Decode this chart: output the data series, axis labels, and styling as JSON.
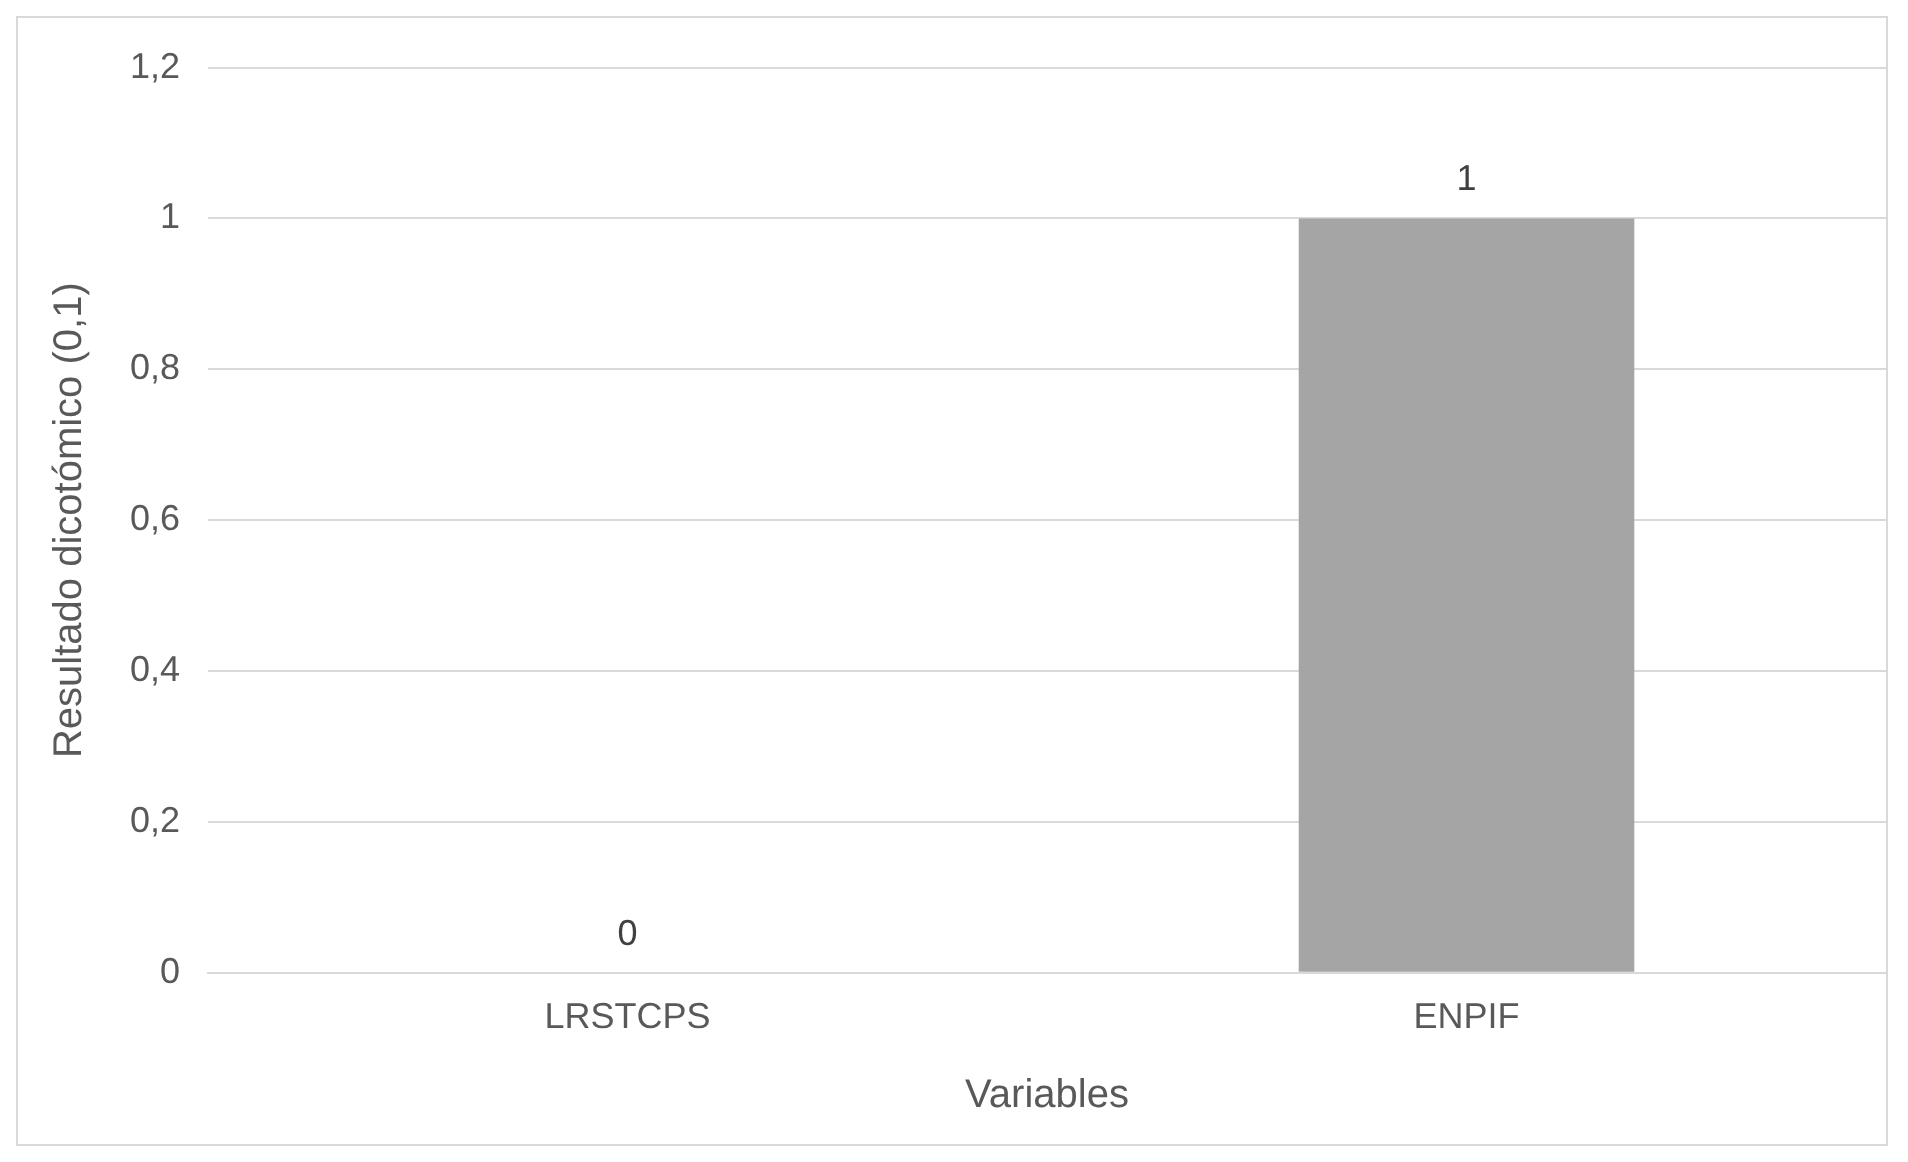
{
  "chart_data": {
    "type": "bar",
    "xlabel": "Variables",
    "ylabel": "Resultado dicotómico (0,1)",
    "categories": [
      "LRSTCPS",
      "ENPIF"
    ],
    "values": [
      0,
      1
    ],
    "color": "#a5a5a5",
    "ylim": [
      0,
      1.2
    ],
    "yticks": [
      {
        "value": 0,
        "label": "0"
      },
      {
        "value": 0.2,
        "label": "0,2"
      },
      {
        "value": 0.4,
        "label": "0,4"
      },
      {
        "value": 0.6,
        "label": "0,6"
      },
      {
        "value": 0.8,
        "label": "0,8"
      },
      {
        "value": 1,
        "label": "1"
      },
      {
        "value": 1.2,
        "label": "1,2"
      }
    ],
    "grid": "y",
    "legend": false,
    "data_labels": true
  }
}
